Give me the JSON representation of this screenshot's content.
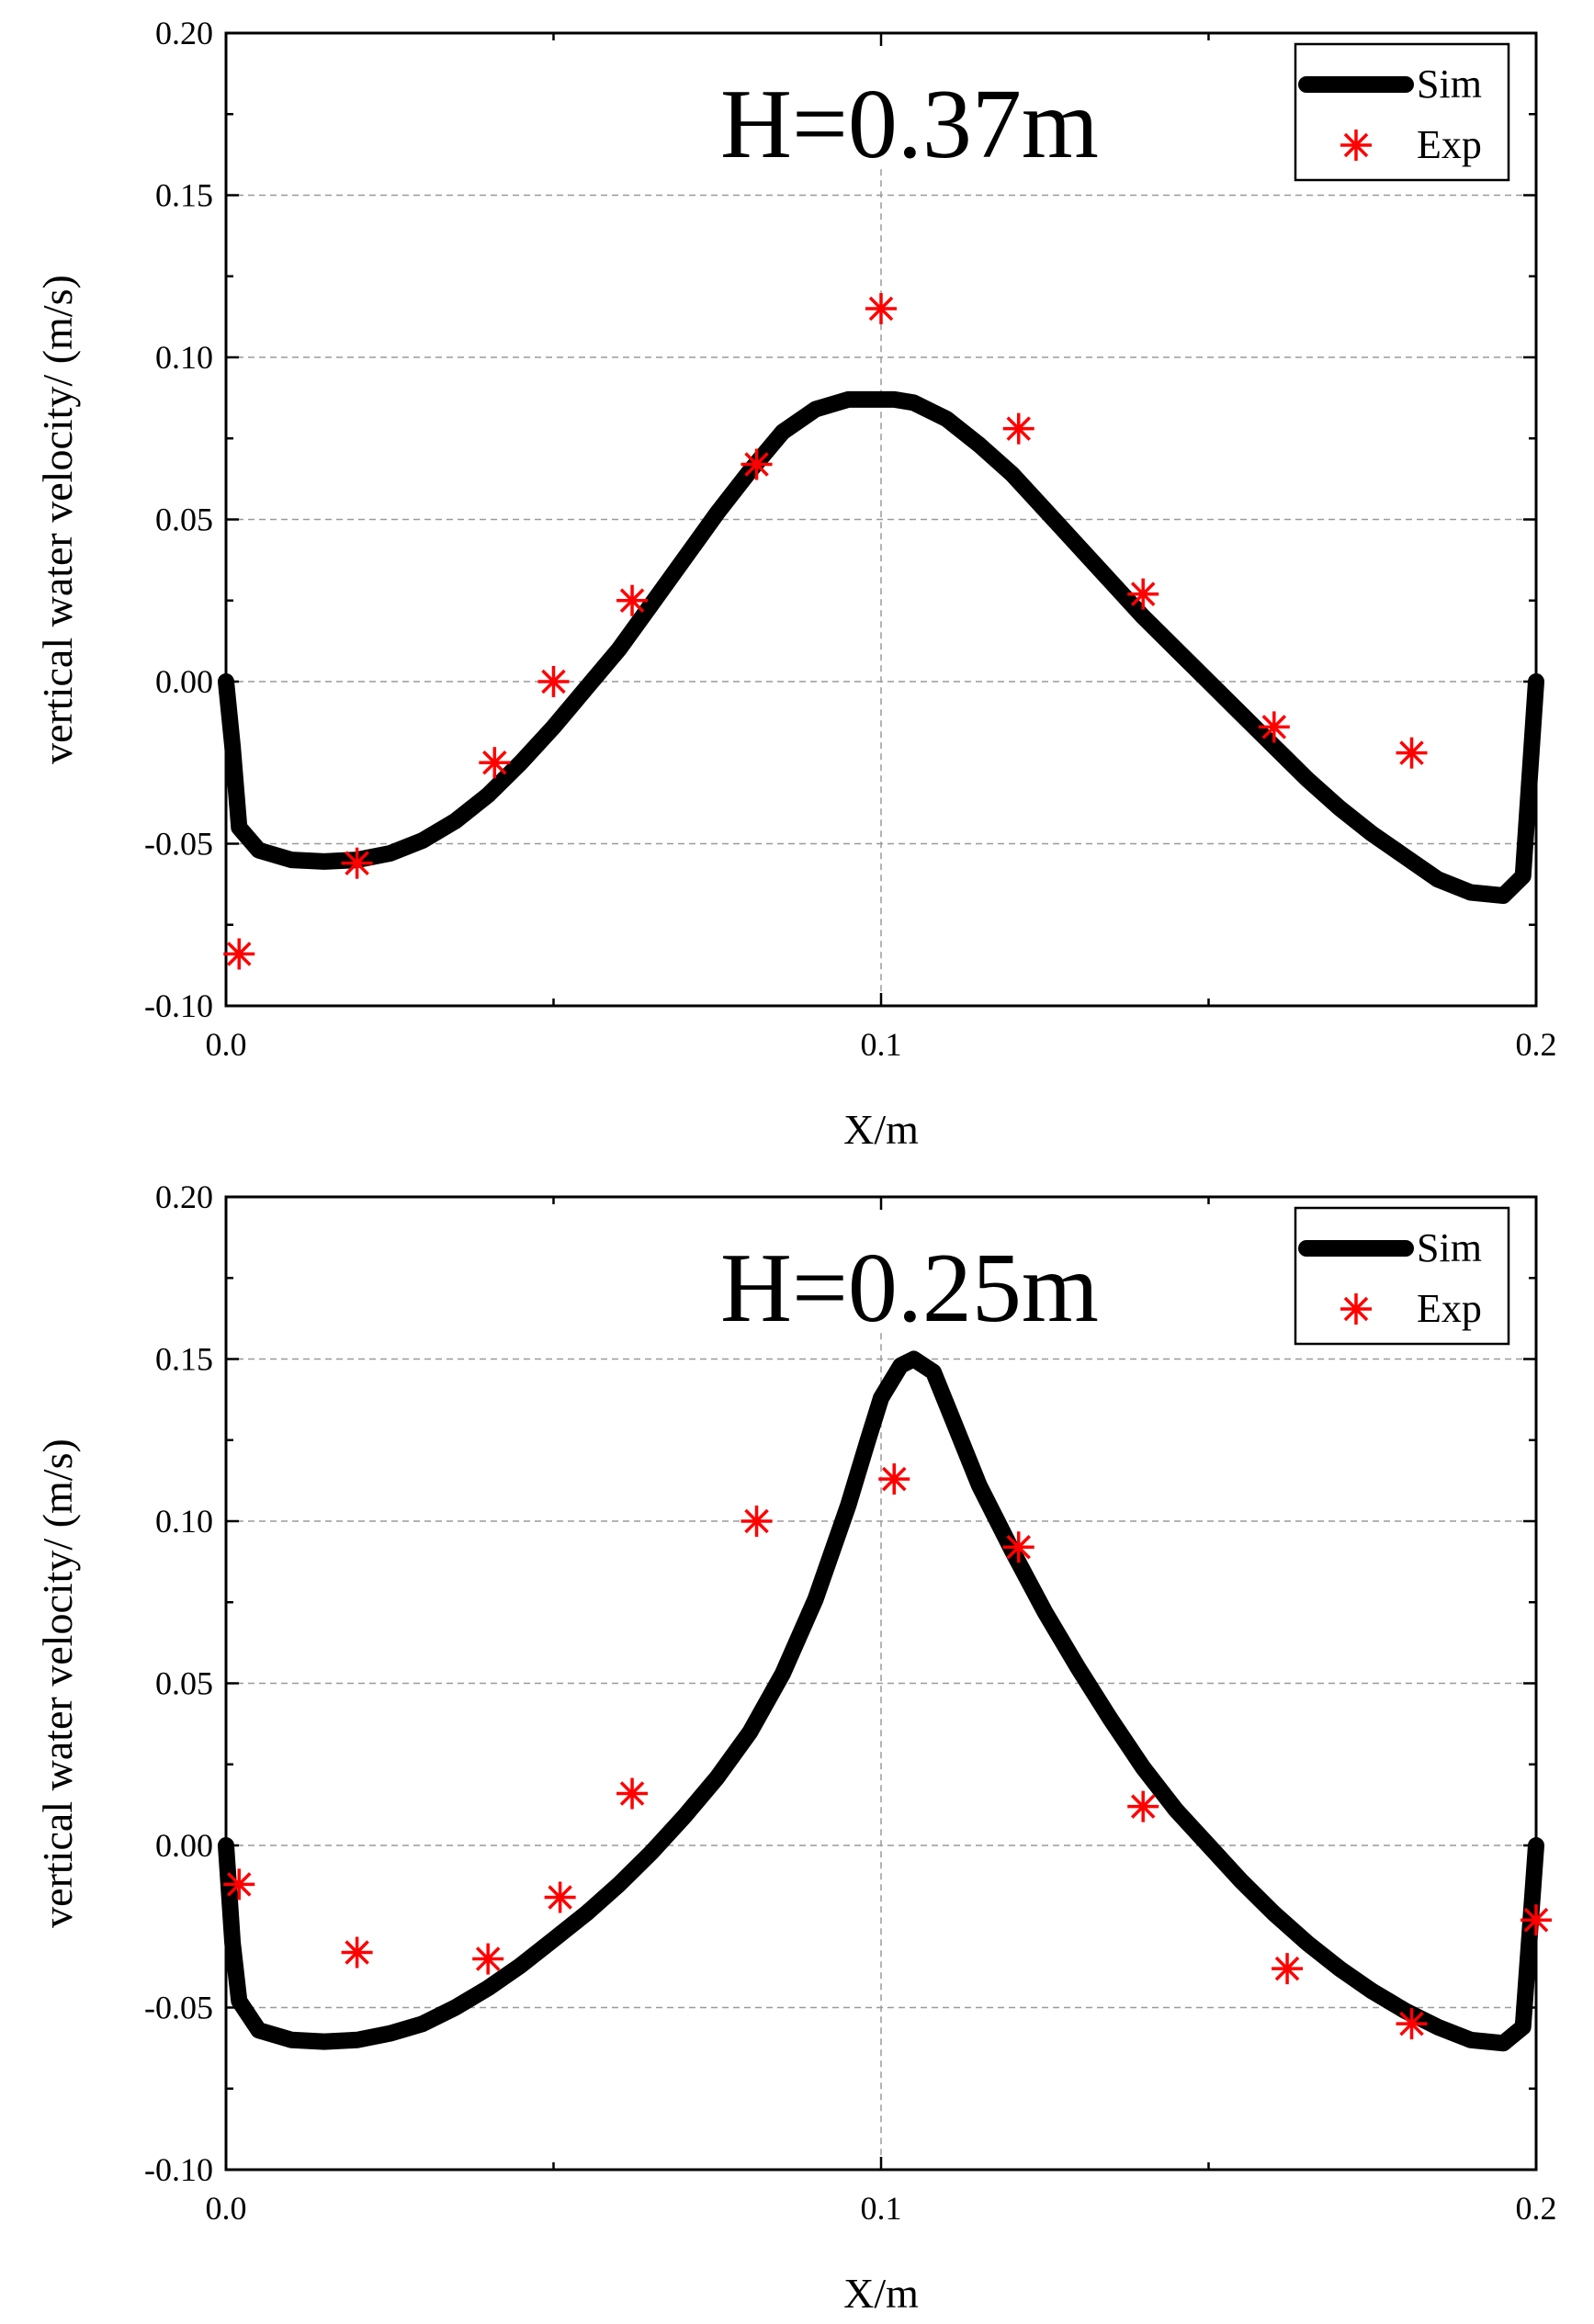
{
  "chart_data": [
    {
      "type": "line+scatter",
      "annotation": "H=0.37m",
      "xlabel": "X/m",
      "ylabel": "vertical water velocity/ (m/s)",
      "xlim": [
        0.0,
        0.2
      ],
      "ylim": [
        -0.1,
        0.2
      ],
      "xticks": [
        0.0,
        0.1,
        0.2
      ],
      "xtick_labels": [
        "0.0",
        "0.1",
        "0.2"
      ],
      "yticks": [
        -0.1,
        -0.05,
        0.0,
        0.05,
        0.1,
        0.15,
        0.2
      ],
      "ytick_labels": [
        "-0.10",
        "-0.05",
        "0.00",
        "0.05",
        "0.10",
        "0.15",
        "0.20"
      ],
      "grid": "dashed horizontal at major y ticks, dashed vertical at x=0.1",
      "legend_position": "top-right",
      "series": [
        {
          "name": "Sim",
          "kind": "line",
          "color": "#000000",
          "x": [
            0.0,
            0.001,
            0.002,
            0.005,
            0.01,
            0.015,
            0.02,
            0.025,
            0.03,
            0.035,
            0.04,
            0.045,
            0.05,
            0.055,
            0.06,
            0.065,
            0.07,
            0.075,
            0.08,
            0.085,
            0.09,
            0.095,
            0.098,
            0.1,
            0.102,
            0.105,
            0.11,
            0.115,
            0.12,
            0.125,
            0.13,
            0.135,
            0.14,
            0.145,
            0.15,
            0.155,
            0.16,
            0.165,
            0.17,
            0.175,
            0.18,
            0.185,
            0.19,
            0.195,
            0.198,
            0.2
          ],
          "y": [
            0.0,
            -0.02,
            -0.045,
            -0.052,
            -0.055,
            -0.0555,
            -0.055,
            -0.053,
            -0.049,
            -0.043,
            -0.035,
            -0.025,
            -0.014,
            -0.002,
            0.01,
            0.024,
            0.038,
            0.052,
            0.065,
            0.077,
            0.084,
            0.087,
            0.087,
            0.087,
            0.087,
            0.086,
            0.081,
            0.073,
            0.064,
            0.053,
            0.042,
            0.031,
            0.02,
            0.01,
            0.0,
            -0.01,
            -0.02,
            -0.03,
            -0.039,
            -0.047,
            -0.054,
            -0.061,
            -0.065,
            -0.066,
            -0.06,
            0.0
          ]
        },
        {
          "name": "Exp",
          "kind": "scatter",
          "marker": "asterisk",
          "color": "#ff0000",
          "x": [
            0.002,
            0.02,
            0.041,
            0.05,
            0.062,
            0.081,
            0.1,
            0.121,
            0.14,
            0.16,
            0.181
          ],
          "y": [
            -0.084,
            -0.056,
            -0.025,
            0.0,
            0.025,
            0.067,
            0.115,
            0.078,
            0.027,
            -0.014,
            -0.022
          ]
        }
      ]
    },
    {
      "type": "line+scatter",
      "annotation": "H=0.25m",
      "xlabel": "X/m",
      "ylabel": "vertical water velocity/ (m/s)",
      "xlim": [
        0.0,
        0.2
      ],
      "ylim": [
        -0.1,
        0.2
      ],
      "xticks": [
        0.0,
        0.1,
        0.2
      ],
      "xtick_labels": [
        "0.0",
        "0.1",
        "0.2"
      ],
      "yticks": [
        -0.1,
        -0.05,
        0.0,
        0.05,
        0.1,
        0.15,
        0.2
      ],
      "ytick_labels": [
        "-0.10",
        "-0.05",
        "0.00",
        "0.05",
        "0.10",
        "0.15",
        "0.20"
      ],
      "grid": "dashed horizontal at major y ticks, dashed vertical at x=0.1",
      "legend_position": "top-right",
      "series": [
        {
          "name": "Sim",
          "kind": "line",
          "color": "#000000",
          "x": [
            0.0,
            0.001,
            0.002,
            0.005,
            0.01,
            0.015,
            0.02,
            0.025,
            0.03,
            0.035,
            0.04,
            0.045,
            0.05,
            0.055,
            0.06,
            0.065,
            0.07,
            0.075,
            0.08,
            0.085,
            0.09,
            0.095,
            0.098,
            0.1,
            0.103,
            0.105,
            0.108,
            0.11,
            0.115,
            0.12,
            0.125,
            0.13,
            0.135,
            0.14,
            0.145,
            0.15,
            0.155,
            0.16,
            0.165,
            0.17,
            0.175,
            0.18,
            0.185,
            0.19,
            0.195,
            0.198,
            0.2
          ],
          "y": [
            0.0,
            -0.03,
            -0.048,
            -0.057,
            -0.06,
            -0.0605,
            -0.06,
            -0.058,
            -0.055,
            -0.05,
            -0.044,
            -0.037,
            -0.029,
            -0.021,
            -0.012,
            -0.002,
            0.009,
            0.021,
            0.035,
            0.053,
            0.076,
            0.105,
            0.125,
            0.138,
            0.148,
            0.15,
            0.146,
            0.136,
            0.111,
            0.091,
            0.072,
            0.055,
            0.039,
            0.024,
            0.011,
            0.0,
            -0.011,
            -0.021,
            -0.03,
            -0.038,
            -0.045,
            -0.051,
            -0.056,
            -0.06,
            -0.061,
            -0.056,
            0.0
          ]
        },
        {
          "name": "Exp",
          "kind": "scatter",
          "marker": "asterisk",
          "color": "#ff0000",
          "x": [
            0.002,
            0.02,
            0.04,
            0.051,
            0.062,
            0.081,
            0.102,
            0.121,
            0.14,
            0.162,
            0.181,
            0.2
          ],
          "y": [
            -0.012,
            -0.033,
            -0.035,
            -0.016,
            0.016,
            0.1,
            0.113,
            0.092,
            0.012,
            -0.038,
            -0.055,
            -0.023
          ]
        }
      ]
    }
  ]
}
